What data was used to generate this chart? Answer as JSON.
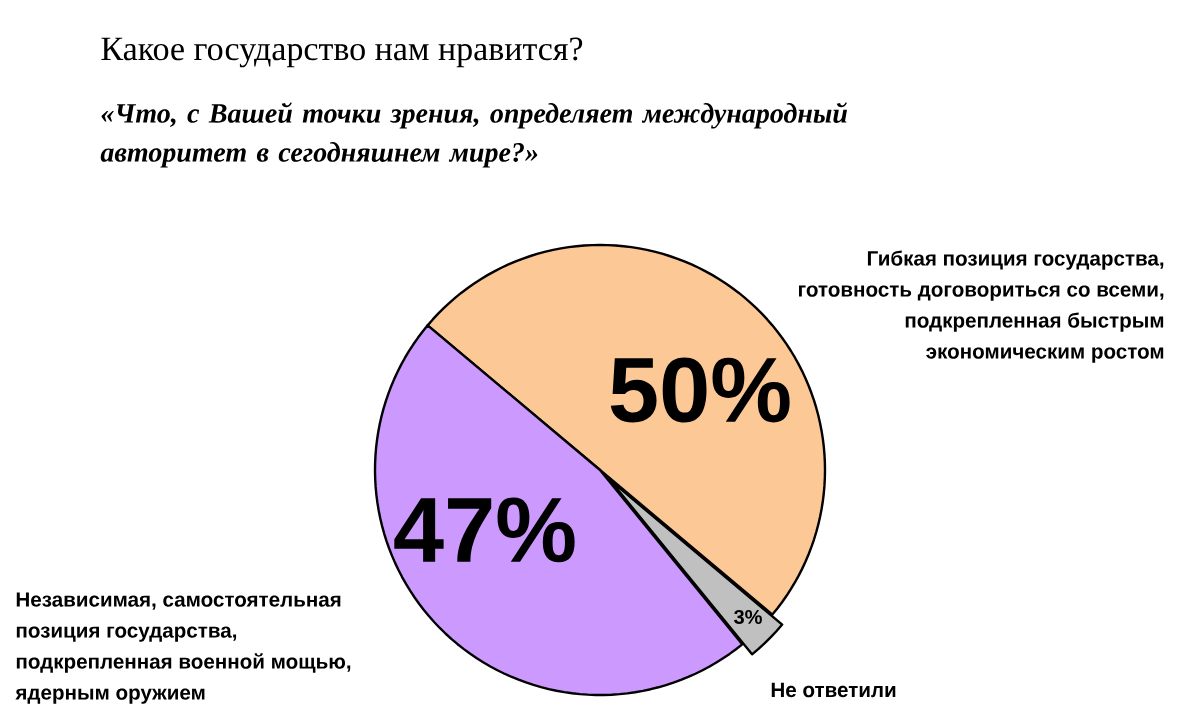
{
  "chart_data": {
    "type": "pie",
    "title": "Какое государство нам нравится?",
    "subtitle": "«Что, с Вашей точки зрения, определяет международный авторитет в сегодняшнем мире?»",
    "categories": [
      "Гибкая позиция государства, готовность договориться со всеми, подкрепленная быстрым экономическим ростом",
      "Не ответили",
      "Независимая, самостоятельная позиция государства, подкрепленная военной мощью, ядерным оружием"
    ],
    "values": [
      50,
      3,
      47
    ],
    "colors": [
      "#fcc896",
      "#c0c0c0",
      "#cc99ff"
    ],
    "value_labels": [
      "50%",
      "3%",
      "47%"
    ]
  }
}
